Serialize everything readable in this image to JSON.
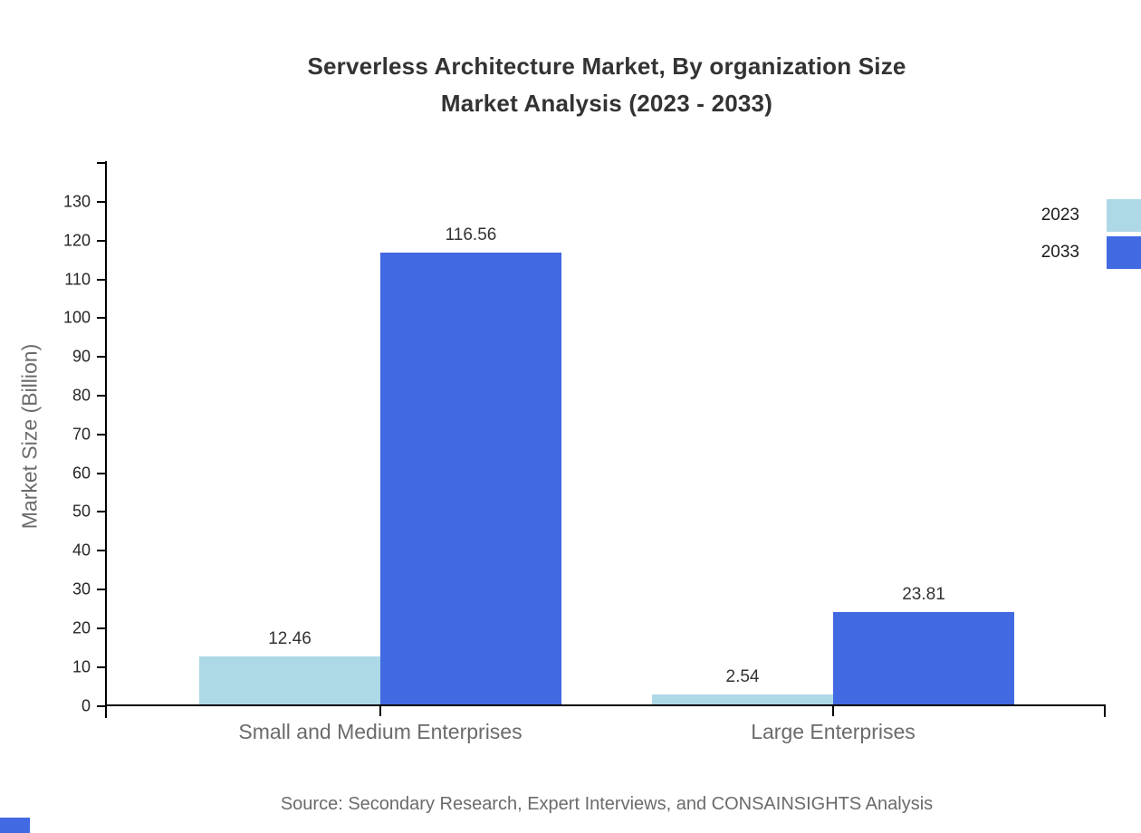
{
  "chart_data": {
    "type": "bar",
    "title": "Serverless Architecture Market, By organization Size Market Analysis (2023 - 2033)",
    "title_lines": [
      "Serverless Architecture Market, By organization Size",
      "Market Analysis (2023 - 2033)"
    ],
    "categories": [
      "Small and Medium Enterprises",
      "Large Enterprises"
    ],
    "series": [
      {
        "name": "2023",
        "values": [
          12.46,
          2.54
        ],
        "color": "#ADD8E6"
      },
      {
        "name": "2033",
        "values": [
          116.56,
          23.81
        ],
        "color": "#4169E1"
      }
    ],
    "xlabel": "",
    "ylabel": "Market Size (Billion)",
    "ylim": [
      0,
      140
    ],
    "yticks": [
      0,
      10,
      20,
      30,
      40,
      50,
      60,
      70,
      80,
      90,
      100,
      110,
      120,
      130
    ],
    "grid": false,
    "legend_position": "top-right",
    "value_label_decimals": 2
  },
  "footer": {
    "source": "Source: Secondary Research, Expert Interviews, and CONSAINSIGHTS Analysis"
  },
  "colors": {
    "series_2023": "#ADD8E6",
    "series_2033": "#4169E1",
    "axis_line": "#000000",
    "tick_text": "#262626",
    "title_text": "#333333",
    "muted_text": "#6B6B6B",
    "value_text": "#333333",
    "brand_mark": "#4169E1"
  }
}
